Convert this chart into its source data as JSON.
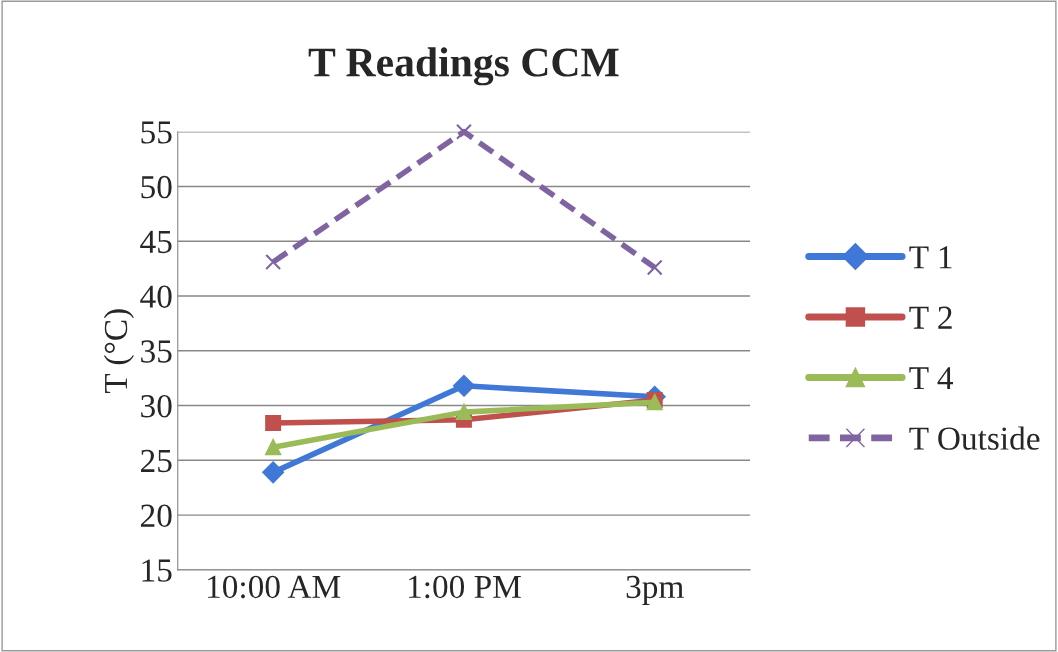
{
  "chart_data": {
    "type": "line",
    "title": "T Readings CCM",
    "ylabel": "T (°C)",
    "categories": [
      "10:00 AM",
      "1:00 PM",
      "3pm"
    ],
    "series": [
      {
        "name": "T 1",
        "color": "#3f78d6",
        "marker": "diamond",
        "line_style": "solid",
        "values": [
          23.9,
          31.8,
          30.8
        ]
      },
      {
        "name": "T 2",
        "color": "#c0504d",
        "marker": "square",
        "line_style": "solid",
        "values": [
          28.4,
          28.7,
          30.5
        ]
      },
      {
        "name": "T 4",
        "color": "#9bbb59",
        "marker": "triangle",
        "line_style": "solid",
        "values": [
          26.2,
          29.4,
          30.3
        ]
      },
      {
        "name": "T Outside",
        "color": "#8064a2",
        "marker": "cross",
        "line_style": "dashed",
        "values": [
          43.1,
          55,
          42.6
        ]
      }
    ],
    "ylim": [
      15,
      55
    ],
    "yticks": [
      15,
      20,
      25,
      30,
      35,
      40,
      45,
      50,
      55
    ],
    "grid": "y",
    "legend": "right"
  }
}
